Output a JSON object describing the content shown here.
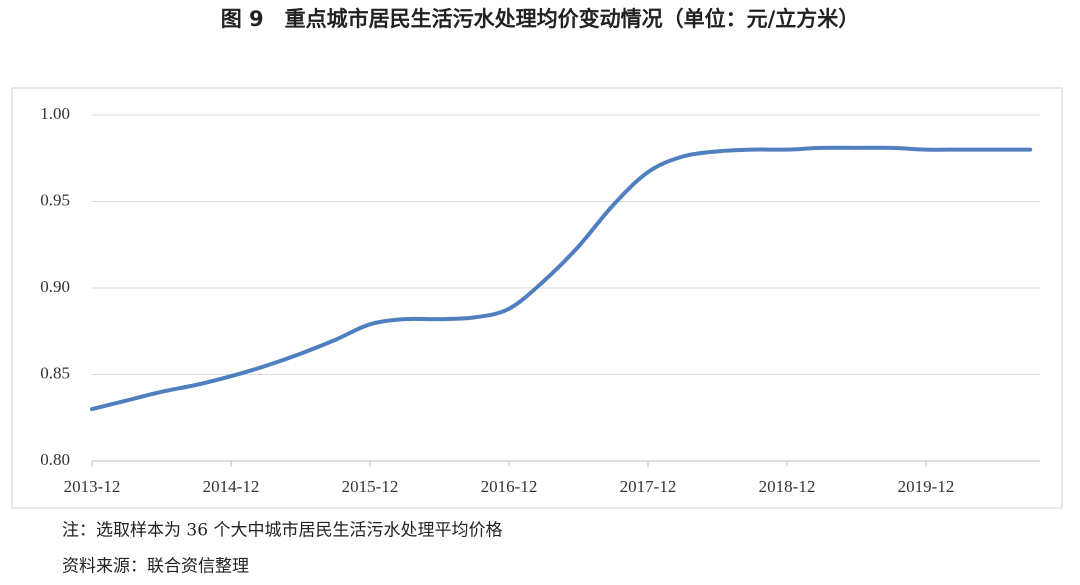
{
  "chart_data": {
    "type": "line",
    "title": "图 9　重点城市居民生活污水处理均价变动情况（单位：元/立方米）",
    "categories": [
      "2013-12",
      null,
      null,
      null,
      "2014-12",
      null,
      null,
      null,
      "2015-12",
      null,
      null,
      null,
      "2016-12",
      null,
      null,
      null,
      "2017-12",
      null,
      null,
      null,
      "2018-12",
      null,
      null,
      null,
      "2019-12",
      null,
      null,
      null
    ],
    "series": [
      {
        "color": "#4f7fbf",
        "values": [
          0.83,
          0.835,
          0.84,
          0.844,
          0.849,
          0.855,
          0.862,
          0.87,
          0.879,
          0.882,
          0.882,
          0.883,
          0.888,
          0.904,
          0.924,
          0.948,
          0.967,
          0.976,
          0.979,
          0.98,
          0.98,
          0.981,
          0.981,
          0.981,
          0.98,
          0.98,
          0.98,
          0.98
        ]
      }
    ],
    "ylim": [
      0.8,
      1.0
    ],
    "yticks": [
      {
        "value": 0.8,
        "label": "0.80"
      },
      {
        "value": 0.85,
        "label": "0.85"
      },
      {
        "value": 0.9,
        "label": "0.90"
      },
      {
        "value": 0.95,
        "label": "0.95"
      },
      {
        "value": 1.0,
        "label": "1.00"
      }
    ],
    "grid": true,
    "notes": [
      "注：选取样本为 36 个大中城市居民生活污水处理平均价格",
      "资料来源：联合资信整理"
    ]
  }
}
